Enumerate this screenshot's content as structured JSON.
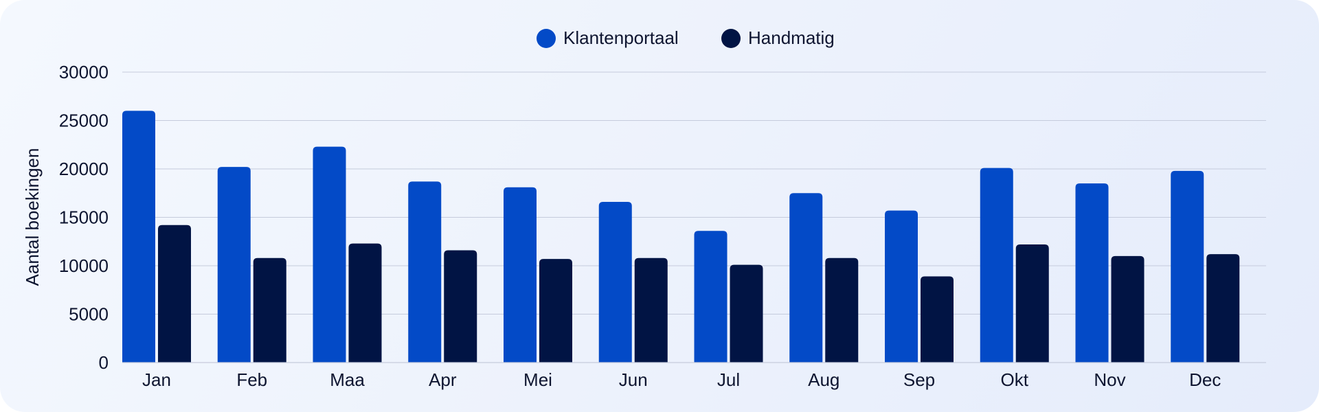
{
  "chart_data": {
    "type": "bar",
    "categories": [
      "Jan",
      "Feb",
      "Maa",
      "Apr",
      "Mei",
      "Jun",
      "Jul",
      "Aug",
      "Sep",
      "Okt",
      "Nov",
      "Dec"
    ],
    "series": [
      {
        "name": "Klantenportaal",
        "color": "#034ac7",
        "values": [
          26000,
          20200,
          22300,
          18700,
          18100,
          16600,
          13600,
          17500,
          15700,
          20100,
          18500,
          19800
        ]
      },
      {
        "name": "Handmatig",
        "color": "#011444",
        "values": [
          14200,
          10800,
          12300,
          11600,
          10700,
          10800,
          10100,
          10800,
          8900,
          12200,
          11000,
          11200
        ]
      }
    ],
    "ylabel": "Aantal boekingen",
    "xlabel": "",
    "ylim": [
      0,
      30000
    ],
    "yticks": [
      0,
      5000,
      10000,
      15000,
      20000,
      25000,
      30000
    ],
    "grid": true,
    "legend": "top-center"
  }
}
